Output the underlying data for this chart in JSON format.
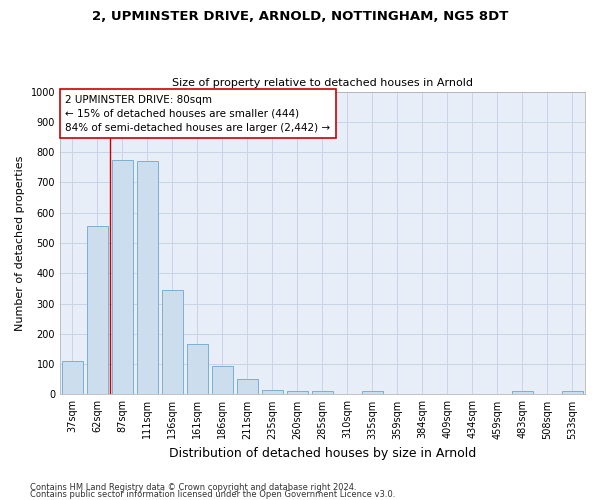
{
  "title1": "2, UPMINSTER DRIVE, ARNOLD, NOTTINGHAM, NG5 8DT",
  "title2": "Size of property relative to detached houses in Arnold",
  "xlabel": "Distribution of detached houses by size in Arnold",
  "ylabel": "Number of detached properties",
  "categories": [
    "37sqm",
    "62sqm",
    "87sqm",
    "111sqm",
    "136sqm",
    "161sqm",
    "186sqm",
    "211sqm",
    "235sqm",
    "260sqm",
    "285sqm",
    "310sqm",
    "335sqm",
    "359sqm",
    "384sqm",
    "409sqm",
    "434sqm",
    "459sqm",
    "483sqm",
    "508sqm",
    "533sqm"
  ],
  "values": [
    110,
    555,
    775,
    770,
    345,
    165,
    95,
    50,
    15,
    10,
    10,
    0,
    10,
    0,
    0,
    0,
    0,
    0,
    10,
    0,
    10
  ],
  "bar_color": "#ccdded",
  "bar_edge_color": "#7aafd4",
  "vline_x": 1.5,
  "vline_color": "#cc0000",
  "annotation_text": "2 UPMINSTER DRIVE: 80sqm\n← 15% of detached houses are smaller (444)\n84% of semi-detached houses are larger (2,442) →",
  "annotation_box_color": "#ffffff",
  "annotation_box_edge": "#cc0000",
  "ylim": [
    0,
    1000
  ],
  "yticks": [
    0,
    100,
    200,
    300,
    400,
    500,
    600,
    700,
    800,
    900,
    1000
  ],
  "footer1": "Contains HM Land Registry data © Crown copyright and database right 2024.",
  "footer2": "Contains public sector information licensed under the Open Government Licence v3.0.",
  "grid_color": "#c8d4e8",
  "bg_color": "#e8eef8",
  "title1_fontsize": 9.5,
  "title2_fontsize": 8,
  "ylabel_fontsize": 8,
  "xlabel_fontsize": 9,
  "tick_fontsize": 7,
  "footer_fontsize": 6,
  "annot_fontsize": 7.5
}
